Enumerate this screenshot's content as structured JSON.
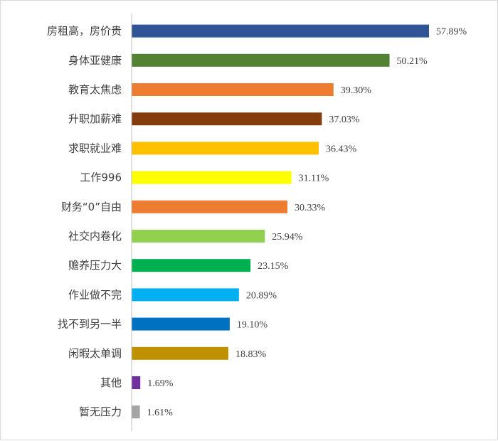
{
  "chart_data": {
    "type": "bar",
    "orientation": "horizontal",
    "categories": [
      "房租高，房价贵",
      "身体亚健康",
      "教育太焦虑",
      "升职加薪难",
      "求职就业难",
      "工作996",
      "财务“0”自由",
      "社交内卷化",
      "赡养压力大",
      "作业做不完",
      "找不到另一半",
      "闲暇太单调",
      "其他",
      "暂无压力"
    ],
    "values": [
      57.89,
      50.21,
      39.3,
      37.03,
      36.43,
      31.11,
      30.33,
      25.94,
      23.15,
      20.89,
      19.1,
      18.83,
      1.69,
      1.61
    ],
    "value_labels": [
      "57.89%",
      "50.21%",
      "39.30%",
      "37.03%",
      "36.43%",
      "31.11%",
      "30.33%",
      "25.94%",
      "23.15%",
      "20.89%",
      "19.10%",
      "18.83%",
      "1.69%",
      "1.61%"
    ],
    "colors": [
      "#2F5597",
      "#548235",
      "#ED7D31",
      "#843C0C",
      "#FFC000",
      "#FFFF00",
      "#ED7D31",
      "#92D050",
      "#00B050",
      "#00B0F0",
      "#0070C0",
      "#BF9000",
      "#7030A0",
      "#A5A5A5"
    ],
    "xlim": [
      0,
      64
    ],
    "title": "",
    "xlabel": "",
    "ylabel": "",
    "grid": false,
    "legend": "none"
  }
}
